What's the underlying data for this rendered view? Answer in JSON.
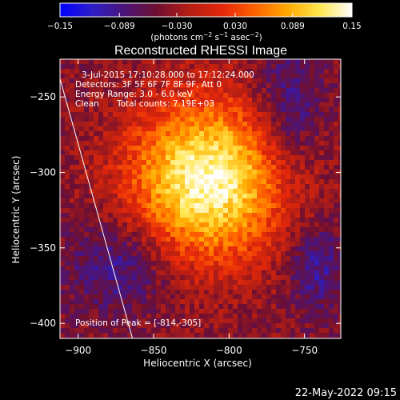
{
  "chart_data": {
    "type": "heatmap",
    "title": "Reconstructed RHESSI Image",
    "xlabel": "Heliocentric X (arcsec)",
    "ylabel": "Heliocentric Y (arcsec)",
    "xlim": [
      -912,
      -726
    ],
    "ylim": [
      -410,
      -225
    ],
    "x_ticks": [
      -900,
      -850,
      -800,
      -750
    ],
    "y_ticks": [
      -250,
      -300,
      -350,
      -400
    ],
    "x_tick_labels": [
      "−900",
      "−850",
      "−800",
      "−750"
    ],
    "y_tick_labels": [
      "−250",
      "−300",
      "−350",
      "−400"
    ],
    "colorbar": {
      "range": [
        -0.15,
        0.15
      ],
      "ticks": [
        -0.15,
        -0.089,
        -0.03,
        0.03,
        0.089,
        0.15
      ],
      "tick_labels": [
        "−0.15",
        "−0.089",
        "−0.030",
        "0.030",
        "0.089",
        "0.15"
      ],
      "unit_prefix": "(photons cm",
      "unit_exp1": "−2",
      "unit_mid1": " s",
      "unit_exp2": "−1",
      "unit_mid2": " asec",
      "unit_exp3": "−2",
      "unit_suffix": ")"
    },
    "annotations": {
      "time_range": "3-Jul-2015 17:10:28.000 to 17:12:24.000",
      "detectors": "Detectors: 3F 5F 6F 7F 8F 9F, Att 0",
      "energy_range": "Energy Range: 3.0 - 6.0 keV",
      "method": "Clean",
      "total_counts": "Total counts: 7.19E+03",
      "peak": "Position of Peak = [-814,-305]"
    },
    "peak_position": [
      -814,
      -305
    ],
    "limb_line": {
      "x": [
        -912,
        -864
      ],
      "y": [
        -238,
        -410
      ]
    },
    "grid": false,
    "background": "#000000",
    "field_color": "#c8281e",
    "colormap": [
      "#0000ff",
      "#2d1ec8",
      "#4b1478",
      "#6e0f32",
      "#b41e14",
      "#e6280a",
      "#ff6400",
      "#ffaa00",
      "#ffe650",
      "#ffffff"
    ]
  },
  "footer": {
    "timestamp": "22-May-2022 09:15"
  }
}
